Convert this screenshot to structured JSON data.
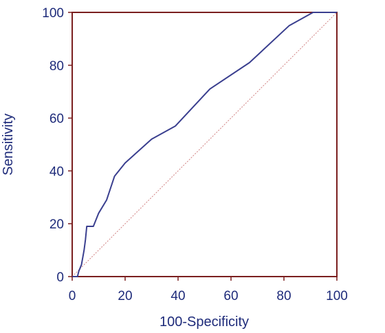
{
  "chart_data": {
    "type": "line",
    "title": "",
    "xlabel": "100-Specificity",
    "ylabel": "Sensitivity",
    "xlim": [
      0,
      100
    ],
    "ylim": [
      0,
      100
    ],
    "x_ticks": [
      "0",
      "20",
      "40",
      "60",
      "80",
      "100"
    ],
    "y_ticks": [
      "0",
      "20",
      "40",
      "60",
      "80",
      "100"
    ],
    "grid": false,
    "legend": "none",
    "colors": {
      "frame": "#7a1e1e",
      "curve": "#3a3f8f",
      "reference": "#d08080",
      "text": "#1e2b7a"
    },
    "series": [
      {
        "x": [
          0,
          2,
          2.5,
          3.5,
          4.5,
          5,
          5.5,
          6,
          8,
          10,
          13,
          16,
          20,
          30,
          39,
          52,
          67,
          82,
          91,
          100
        ],
        "y": [
          0,
          0,
          2,
          4.5,
          10,
          14,
          19,
          19,
          19,
          24,
          29,
          38,
          43,
          52,
          57,
          71,
          81,
          95,
          100,
          100
        ]
      },
      {
        "x": [
          0,
          100
        ],
        "y": [
          0,
          100
        ],
        "style": "dashed"
      }
    ]
  }
}
